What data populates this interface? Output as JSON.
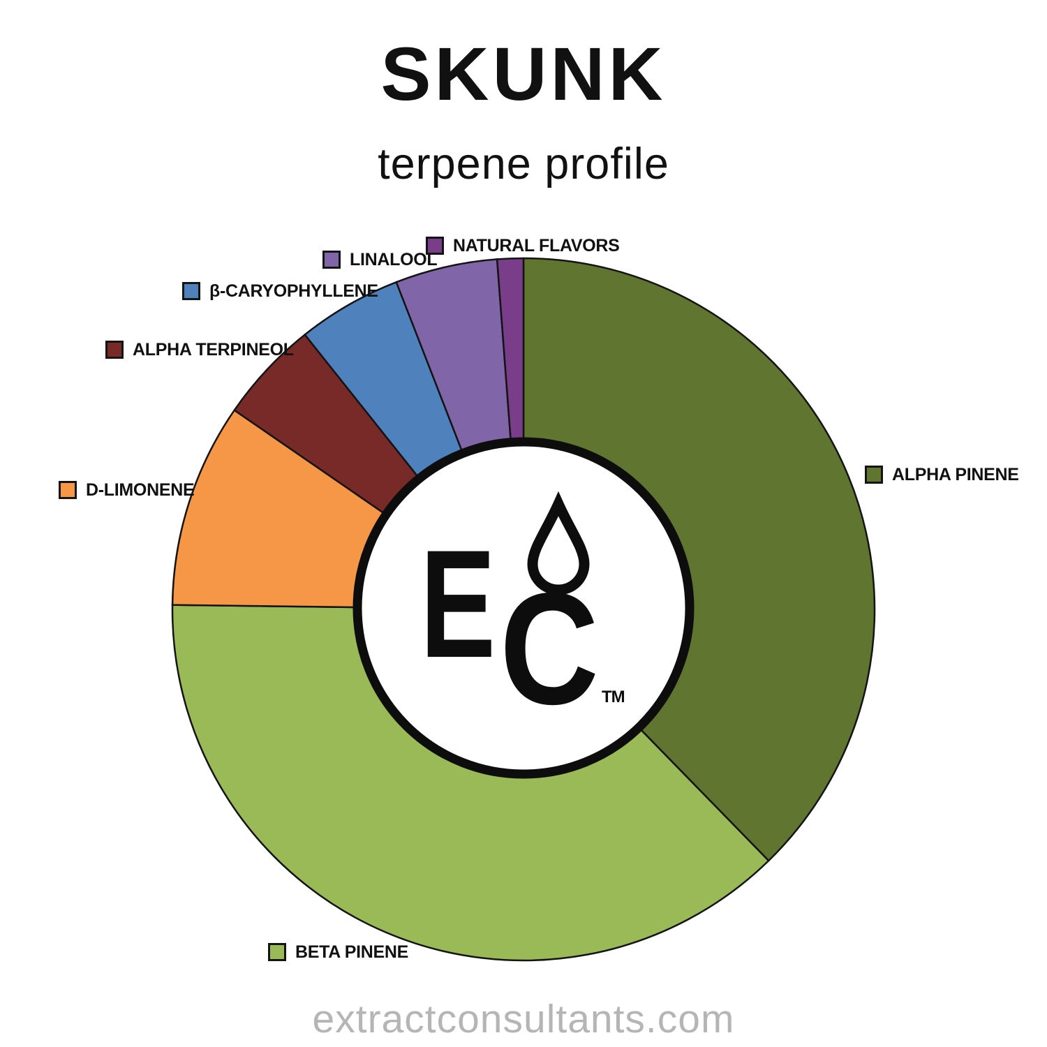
{
  "title": "SKUNK",
  "subtitle": "terpene profile",
  "footer": "extractconsultants.com",
  "logo": {
    "letter_e": "E",
    "letter_c": "C",
    "tm": "TM"
  },
  "chart_data": {
    "type": "pie",
    "title": "SKUNK terpene profile",
    "donut": true,
    "start_angle_deg": 0,
    "direction": "clockwise",
    "legend_position": "outside-labels",
    "slices": [
      {
        "label": "ALPHA PINENE",
        "percent": 37.7,
        "color": "#5f7530"
      },
      {
        "label": "BETA PINENE",
        "percent": 37.5,
        "color": "#9aba57"
      },
      {
        "label": "D-LIMONENE",
        "percent": 9.4,
        "color": "#f59747"
      },
      {
        "label": "ALPHA TERPINEOL",
        "percent": 4.7,
        "color": "#772a28"
      },
      {
        "label": "β-CARYOPHYLLENE",
        "percent": 4.8,
        "color": "#4f81bd"
      },
      {
        "label": "LINALOOL",
        "percent": 4.7,
        "color": "#8066a8"
      },
      {
        "label": "NATURAL FLAVORS",
        "percent": 1.2,
        "color": "#7a3d8a"
      }
    ]
  }
}
